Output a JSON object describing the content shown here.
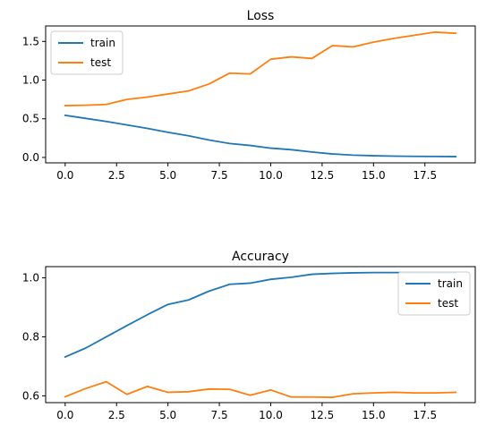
{
  "chart_data": [
    {
      "type": "line",
      "title": "Loss",
      "xlabel": "",
      "ylabel": "",
      "x": [
        0,
        1,
        2,
        3,
        4,
        5,
        6,
        7,
        8,
        9,
        10,
        11,
        12,
        13,
        14,
        15,
        16,
        17,
        18,
        19
      ],
      "series": [
        {
          "name": "train",
          "color": "#1f77b4",
          "values": [
            0.545,
            0.505,
            0.465,
            0.42,
            0.375,
            0.325,
            0.28,
            0.225,
            0.18,
            0.155,
            0.12,
            0.1,
            0.07,
            0.045,
            0.03,
            0.022,
            0.017,
            0.014,
            0.012,
            0.01
          ]
        },
        {
          "name": "test",
          "color": "#ff7f0e",
          "values": [
            0.67,
            0.675,
            0.685,
            0.75,
            0.78,
            0.82,
            0.86,
            0.95,
            1.09,
            1.08,
            1.27,
            1.3,
            1.28,
            1.445,
            1.43,
            1.49,
            1.54,
            1.58,
            1.62,
            1.605
          ]
        }
      ],
      "xlim": [
        -0.95,
        19.95
      ],
      "ylim": [
        -0.07,
        1.7
      ],
      "xticks": [
        0,
        2.5,
        5.0,
        7.5,
        10.0,
        12.5,
        15.0,
        17.5
      ],
      "xtick_labels": [
        "0.0",
        "2.5",
        "5.0",
        "7.5",
        "10.0",
        "12.5",
        "15.0",
        "17.5"
      ],
      "yticks": [
        0.0,
        0.5,
        1.0,
        1.5
      ],
      "ytick_labels": [
        "0.0",
        "0.5",
        "1.0",
        "1.5"
      ],
      "legend": "upper left",
      "grid": false
    },
    {
      "type": "line",
      "title": "Accuracy",
      "xlabel": "",
      "ylabel": "",
      "x": [
        0,
        1,
        2,
        3,
        4,
        5,
        6,
        7,
        8,
        9,
        10,
        11,
        12,
        13,
        14,
        15,
        16,
        17,
        18,
        19
      ],
      "series": [
        {
          "name": "train",
          "color": "#1f77b4",
          "values": [
            0.732,
            0.762,
            0.8,
            0.838,
            0.875,
            0.91,
            0.925,
            0.955,
            0.978,
            0.982,
            0.995,
            1.002,
            1.012,
            1.015,
            1.017,
            1.018,
            1.018,
            1.018,
            1.018,
            1.018
          ]
        },
        {
          "name": "test",
          "color": "#ff7f0e",
          "values": [
            0.597,
            0.625,
            0.648,
            0.605,
            0.632,
            0.612,
            0.614,
            0.623,
            0.622,
            0.602,
            0.62,
            0.596,
            0.596,
            0.595,
            0.607,
            0.61,
            0.612,
            0.61,
            0.61,
            0.612
          ]
        }
      ],
      "xlim": [
        -0.95,
        19.95
      ],
      "ylim": [
        0.577,
        1.038
      ],
      "xticks": [
        0,
        2.5,
        5.0,
        7.5,
        10.0,
        12.5,
        15.0,
        17.5
      ],
      "xtick_labels": [
        "0.0",
        "2.5",
        "5.0",
        "7.5",
        "10.0",
        "12.5",
        "15.0",
        "17.5"
      ],
      "yticks": [
        0.6,
        0.8,
        1.0
      ],
      "ytick_labels": [
        "0.6",
        "0.8",
        "1.0"
      ],
      "legend": "right",
      "grid": false
    }
  ]
}
